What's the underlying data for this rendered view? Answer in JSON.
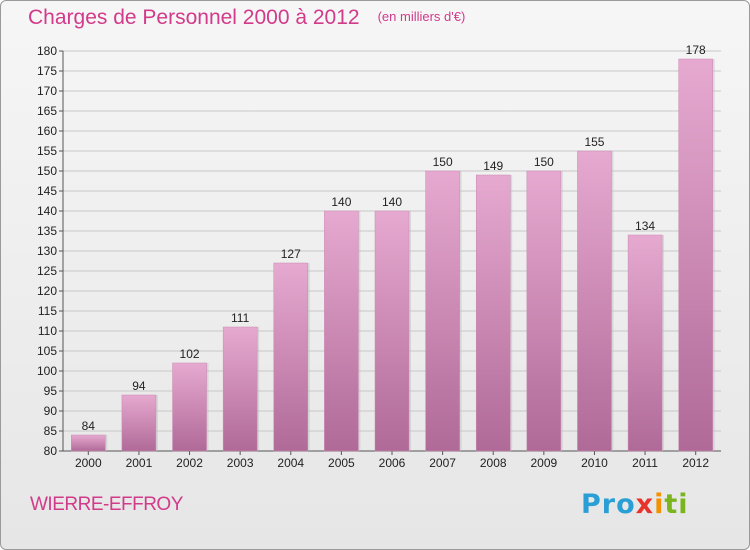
{
  "header": {
    "title": "Charges de Personnel 2000 à 2012",
    "subtitle": "(en milliers d'€)"
  },
  "footer": {
    "town": "WIERRE-EFFROY",
    "logo_text": "Proxiti"
  },
  "colors": {
    "accent": "#d23a8a",
    "bar_top": "#e6a9d0",
    "bar_bottom": "#b06a98"
  },
  "chart_data": {
    "type": "bar",
    "title": "Charges de Personnel 2000 à 2012",
    "subtitle": "(en milliers d'€)",
    "xlabel": "",
    "ylabel": "",
    "categories": [
      "2000",
      "2001",
      "2002",
      "2003",
      "2004",
      "2005",
      "2006",
      "2007",
      "2008",
      "2009",
      "2010",
      "2011",
      "2012"
    ],
    "values": [
      84,
      94,
      102,
      111,
      127,
      140,
      140,
      150,
      149,
      150,
      155,
      134,
      178
    ],
    "ylim": [
      80,
      180
    ],
    "ytick_step": 5,
    "grid": true,
    "legend": "none"
  }
}
